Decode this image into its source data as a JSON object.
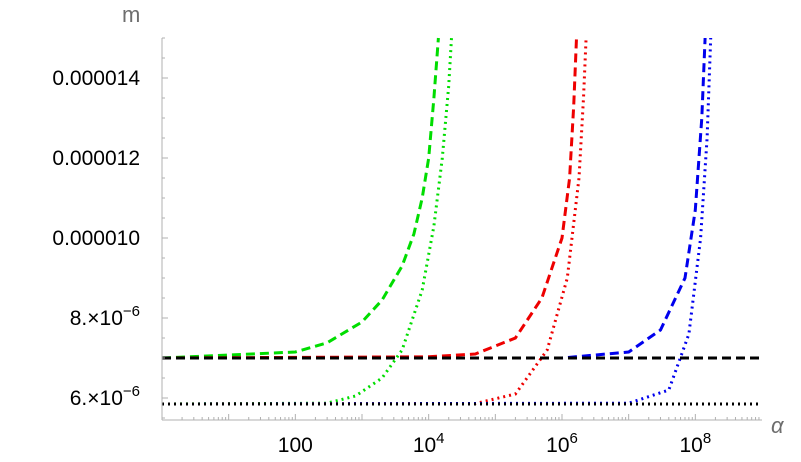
{
  "chart_data": {
    "type": "line",
    "title": "",
    "xlabel": "α",
    "ylabel": "m",
    "xscale": "log",
    "xlim": [
      1,
      1000000000
    ],
    "ylim": [
      5.45e-06,
      1.5e-05
    ],
    "grid": false,
    "legend": "none",
    "x_ticks": [
      {
        "value": 100,
        "base": "100",
        "exp": ""
      },
      {
        "value": 10000,
        "base": "10",
        "exp": "4"
      },
      {
        "value": 1000000,
        "base": "10",
        "exp": "6"
      },
      {
        "value": 100000000,
        "base": "10",
        "exp": "8"
      }
    ],
    "y_ticks": [
      {
        "value": 6e-06,
        "base": "6.×10",
        "exp": "−6"
      },
      {
        "value": 8e-06,
        "base": "8.×10",
        "exp": "−6"
      },
      {
        "value": 1e-05,
        "base": "0.000010",
        "exp": ""
      },
      {
        "value": 1.2e-05,
        "base": "0.000012",
        "exp": ""
      },
      {
        "value": 1.4e-05,
        "base": "0.000014",
        "exp": ""
      }
    ],
    "series": [
      {
        "color": "#00dd00",
        "dash": "dashed",
        "x": [
          1,
          100,
          300,
          1000,
          2000,
          4000,
          6000,
          8000,
          10000,
          12000,
          14000
        ],
        "y": [
          7e-06,
          7.15e-06,
          7.38e-06,
          7.9e-06,
          8.45e-06,
          9.3e-06,
          1.01e-05,
          1.1e-05,
          1.2e-05,
          1.35e-05,
          1.5e-05
        ]
      },
      {
        "color": "#00dd00",
        "dash": "dotted",
        "x": [
          1,
          300,
          800,
          2000,
          4000,
          8000,
          12000,
          16000,
          20000,
          22000
        ],
        "y": [
          5.85e-06,
          5.87e-06,
          6.05e-06,
          6.5e-06,
          7.2e-06,
          8.7e-06,
          1.03e-05,
          1.2e-05,
          1.38e-05,
          1.5e-05
        ]
      },
      {
        "color": "#ee0000",
        "dash": "dashed",
        "x": [
          1,
          10000,
          50000,
          200000,
          500000,
          1000000,
          1300000,
          1500000,
          1650000
        ],
        "y": [
          7e-06,
          7.03e-06,
          7.1e-06,
          7.5e-06,
          8.5e-06,
          1e-05,
          1.15e-05,
          1.33e-05,
          1.5e-05
        ]
      },
      {
        "color": "#ee0000",
        "dash": "dotted",
        "x": [
          1,
          50000,
          200000,
          600000,
          1200000,
          1800000,
          2100000,
          2300000
        ],
        "y": [
          5.85e-06,
          5.86e-06,
          6.1e-06,
          7.2e-06,
          9e-06,
          1.15e-05,
          1.35e-05,
          1.5e-05
        ]
      },
      {
        "color": "#0000ee",
        "dash": "dashed",
        "x": [
          1,
          1000000,
          10000000,
          30000000,
          70000000,
          100000000,
          125000000,
          140000000
        ],
        "y": [
          7e-06,
          7e-06,
          7.15e-06,
          7.7e-06,
          9e-06,
          1.07e-05,
          1.3e-05,
          1.5e-05
        ]
      },
      {
        "color": "#0000ee",
        "dash": "dotted",
        "x": [
          1,
          10000000,
          40000000,
          80000000,
          120000000,
          150000000,
          170000000
        ],
        "y": [
          5.85e-06,
          5.87e-06,
          6.2e-06,
          7.6e-06,
          1e-05,
          1.25e-05,
          1.5e-05
        ]
      },
      {
        "color": "#000000",
        "dash": "dashed",
        "x": [
          1,
          1000000000
        ],
        "y": [
          7e-06,
          7e-06
        ]
      },
      {
        "color": "#000000",
        "dash": "dotted",
        "x": [
          1,
          1000000000
        ],
        "y": [
          5.85e-06,
          5.85e-06
        ]
      }
    ]
  }
}
